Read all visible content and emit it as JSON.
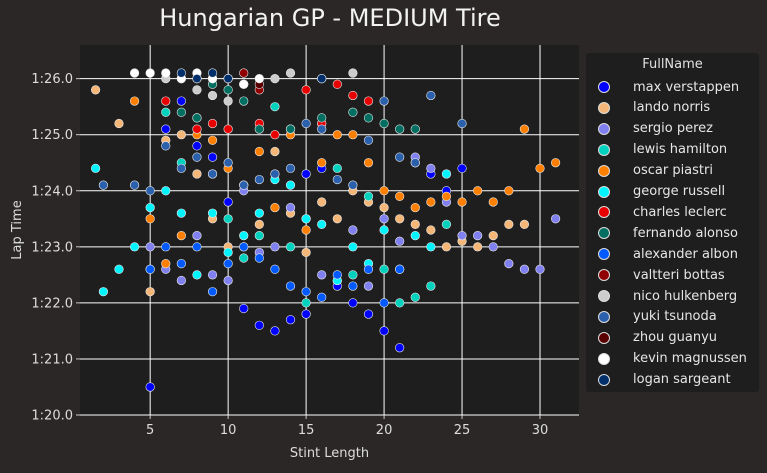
{
  "chart_data": {
    "type": "scatter",
    "title": "Hungarian GP - MEDIUM Tire",
    "xlabel": "Stint Length",
    "ylabel": "Lap Time",
    "xlim": [
      0.5,
      32.5
    ],
    "ylim": [
      80,
      86.6
    ],
    "x_ticks": [
      5,
      10,
      15,
      20,
      25,
      30
    ],
    "y_ticks": [
      {
        "value": 80,
        "label": "1:20.0"
      },
      {
        "value": 81,
        "label": "1:21.0"
      },
      {
        "value": 82,
        "label": "1:22.0"
      },
      {
        "value": 83,
        "label": "1:23.0"
      },
      {
        "value": 84,
        "label": "1:24.0"
      },
      {
        "value": 85,
        "label": "1:25.0"
      },
      {
        "value": 86,
        "label": "1:26.0"
      }
    ],
    "grid": true,
    "legend_title": "FullName",
    "legend_position": "right",
    "series": [
      {
        "name": "max verstappen",
        "color": "#0000ff",
        "points": [
          [
            5,
            80.5
          ],
          [
            6,
            85.1
          ],
          [
            7,
            85.6
          ],
          [
            8,
            84.8
          ],
          [
            9,
            84.6
          ],
          [
            10,
            83.8
          ],
          [
            11,
            81.9
          ],
          [
            12,
            81.6
          ],
          [
            13,
            81.5
          ],
          [
            14,
            81.7
          ],
          [
            15,
            81.8
          ],
          [
            15,
            84.3
          ],
          [
            16,
            84.4
          ],
          [
            17,
            82.3
          ],
          [
            18,
            82.0
          ],
          [
            19,
            81.8
          ],
          [
            20,
            81.5
          ],
          [
            21,
            81.2
          ],
          [
            22,
            84.5
          ],
          [
            23,
            84.3
          ],
          [
            24,
            84.0
          ],
          [
            25,
            84.4
          ]
        ]
      },
      {
        "name": "lando norris",
        "color": "#f4b777",
        "points": [
          [
            1.5,
            85.8
          ],
          [
            3,
            85.2
          ],
          [
            5,
            82.2
          ],
          [
            6,
            84.9
          ],
          [
            7,
            85.0
          ],
          [
            8,
            84.3
          ],
          [
            9,
            83.5
          ],
          [
            10,
            83.0
          ],
          [
            11,
            84.1
          ],
          [
            12,
            83.4
          ],
          [
            13,
            84.7
          ],
          [
            14,
            83.6
          ],
          [
            15,
            82.9
          ],
          [
            16,
            83.8
          ],
          [
            17,
            83.5
          ],
          [
            18,
            84.0
          ],
          [
            19,
            83.8
          ],
          [
            20,
            83.7
          ],
          [
            21,
            83.5
          ],
          [
            22,
            83.4
          ],
          [
            23,
            83.3
          ],
          [
            24,
            83.0
          ],
          [
            25,
            83.1
          ],
          [
            26,
            83.0
          ],
          [
            27,
            83.2
          ],
          [
            28,
            83.4
          ],
          [
            29,
            83.4
          ]
        ]
      },
      {
        "name": "sergio perez",
        "color": "#8080f0",
        "points": [
          [
            5,
            83.0
          ],
          [
            6,
            82.6
          ],
          [
            7,
            82.4
          ],
          [
            8,
            83.2
          ],
          [
            9,
            82.5
          ],
          [
            10,
            82.4
          ],
          [
            11,
            84.0
          ],
          [
            12,
            82.9
          ],
          [
            13,
            83.0
          ],
          [
            14,
            83.7
          ],
          [
            15,
            83.5
          ],
          [
            16,
            82.5
          ],
          [
            17,
            82.4
          ],
          [
            18,
            83.3
          ],
          [
            19,
            82.3
          ],
          [
            20,
            83.5
          ],
          [
            21,
            83.1
          ],
          [
            22,
            84.6
          ],
          [
            23,
            84.4
          ],
          [
            24,
            83.8
          ],
          [
            25,
            83.2
          ],
          [
            26,
            83.2
          ],
          [
            27,
            83.0
          ],
          [
            28,
            82.7
          ],
          [
            29,
            82.6
          ],
          [
            30,
            82.6
          ],
          [
            31,
            83.5
          ]
        ]
      },
      {
        "name": "lewis hamilton",
        "color": "#00d2be",
        "points": [
          [
            5,
            82.6
          ],
          [
            6,
            85.4
          ],
          [
            7,
            84.5
          ],
          [
            8,
            85.3
          ],
          [
            9,
            84.3
          ],
          [
            10,
            83.5
          ],
          [
            11,
            82.8
          ],
          [
            12,
            83.2
          ],
          [
            13,
            85.5
          ],
          [
            14,
            83.0
          ],
          [
            15,
            82.0
          ],
          [
            16,
            85.2
          ],
          [
            17,
            84.4
          ],
          [
            18,
            82.5
          ],
          [
            19,
            83.9
          ],
          [
            20,
            82.6
          ],
          [
            21,
            82.0
          ],
          [
            22,
            82.1
          ],
          [
            23,
            82.3
          ],
          [
            24,
            83.4
          ]
        ]
      },
      {
        "name": "oscar piastri",
        "color": "#ff8000",
        "points": [
          [
            4,
            85.6
          ],
          [
            5,
            83.5
          ],
          [
            6,
            82.7
          ],
          [
            7,
            83.2
          ],
          [
            8,
            85.0
          ],
          [
            9,
            84.9
          ],
          [
            10,
            84.4
          ],
          [
            11,
            83.0
          ],
          [
            12,
            84.7
          ],
          [
            13,
            83.7
          ],
          [
            14,
            85.0
          ],
          [
            15,
            83.3
          ],
          [
            16,
            84.5
          ],
          [
            17,
            85.0
          ],
          [
            18,
            85.0
          ],
          [
            19,
            84.5
          ],
          [
            20,
            84.0
          ],
          [
            21,
            83.9
          ],
          [
            22,
            83.7
          ],
          [
            23,
            83.8
          ],
          [
            24,
            83.9
          ],
          [
            25,
            83.8
          ],
          [
            26,
            84.0
          ],
          [
            27,
            83.8
          ],
          [
            28,
            84.0
          ],
          [
            29,
            85.1
          ],
          [
            30,
            84.4
          ],
          [
            31,
            84.5
          ]
        ]
      },
      {
        "name": "george russell",
        "color": "#00f5ff",
        "points": [
          [
            1.5,
            84.4
          ],
          [
            2,
            82.2
          ],
          [
            3,
            82.6
          ],
          [
            4,
            83.0
          ],
          [
            5,
            83.7
          ],
          [
            6,
            84.0
          ],
          [
            7,
            83.6
          ],
          [
            8,
            82.5
          ],
          [
            9,
            83.6
          ],
          [
            10,
            82.9
          ],
          [
            11,
            83.2
          ],
          [
            12,
            83.6
          ],
          [
            13,
            84.2
          ],
          [
            14,
            84.1
          ],
          [
            15,
            83.5
          ],
          [
            16,
            83.4
          ],
          [
            17,
            82.4
          ],
          [
            18,
            83.0
          ],
          [
            19,
            82.7
          ],
          [
            20,
            83.3
          ],
          [
            21,
            82.6
          ],
          [
            22,
            83.2
          ],
          [
            23,
            83.0
          ],
          [
            24,
            84.3
          ]
        ]
      },
      {
        "name": "charles leclerc",
        "color": "#e80000",
        "points": [
          [
            6,
            85.6
          ],
          [
            8,
            85.1
          ],
          [
            9,
            85.2
          ],
          [
            10,
            85.1
          ],
          [
            11,
            85.9
          ],
          [
            12,
            85.2
          ],
          [
            13,
            85.0
          ],
          [
            14,
            85.1
          ],
          [
            15,
            85.8
          ],
          [
            16,
            85.2
          ],
          [
            17,
            85.9
          ],
          [
            18,
            85.7
          ],
          [
            19,
            85.6
          ]
        ]
      },
      {
        "name": "fernando alonso",
        "color": "#006f62",
        "points": [
          [
            7,
            85.4
          ],
          [
            8,
            85.3
          ],
          [
            9,
            85.9
          ],
          [
            10,
            85.8
          ],
          [
            11,
            85.6
          ],
          [
            12,
            85.1
          ],
          [
            14,
            85.1
          ],
          [
            16,
            85.3
          ],
          [
            18,
            85.4
          ],
          [
            19,
            85.3
          ],
          [
            20,
            85.2
          ],
          [
            21,
            85.1
          ],
          [
            22,
            85.1
          ]
        ]
      },
      {
        "name": "alexander albon",
        "color": "#005aff",
        "points": [
          [
            5,
            82.6
          ],
          [
            6,
            83.0
          ],
          [
            7,
            82.7
          ],
          [
            8,
            83.0
          ],
          [
            9,
            82.2
          ],
          [
            10,
            82.7
          ],
          [
            11,
            83.0
          ],
          [
            12,
            82.8
          ],
          [
            13,
            82.6
          ],
          [
            14,
            82.3
          ],
          [
            15,
            82.2
          ],
          [
            16,
            82.1
          ],
          [
            17,
            82.5
          ],
          [
            18,
            82.3
          ],
          [
            19,
            82.6
          ],
          [
            20,
            82.0
          ],
          [
            21,
            82.6
          ]
        ]
      },
      {
        "name": "valtteri bottas",
        "color": "#900000",
        "points": [
          [
            7,
            86.0
          ],
          [
            9,
            86.0
          ],
          [
            11,
            86.1
          ],
          [
            12,
            85.8
          ]
        ]
      },
      {
        "name": "nico hulkenberg",
        "color": "#cccccc",
        "points": [
          [
            6,
            86.0
          ],
          [
            8,
            85.8
          ],
          [
            9,
            85.7
          ],
          [
            10,
            85.6
          ],
          [
            13,
            86.0
          ],
          [
            14,
            86.1
          ],
          [
            16,
            86.0
          ],
          [
            18,
            86.1
          ]
        ]
      },
      {
        "name": "yuki tsunoda",
        "color": "#2b60ad",
        "points": [
          [
            2,
            84.1
          ],
          [
            4,
            84.1
          ],
          [
            5,
            84.0
          ],
          [
            6,
            84.8
          ],
          [
            7,
            84.4
          ],
          [
            8,
            84.6
          ],
          [
            9,
            84.3
          ],
          [
            10,
            84.5
          ],
          [
            11,
            84.1
          ],
          [
            12,
            84.2
          ],
          [
            13,
            84.3
          ],
          [
            14,
            84.4
          ],
          [
            15,
            85.2
          ],
          [
            16,
            85.1
          ],
          [
            17,
            84.2
          ],
          [
            18,
            84.1
          ],
          [
            19,
            84.9
          ],
          [
            20,
            85.6
          ],
          [
            21,
            84.6
          ],
          [
            22,
            84.5
          ],
          [
            23,
            85.7
          ],
          [
            25,
            85.2
          ]
        ]
      },
      {
        "name": "zhou guanyu",
        "color": "#5a0000",
        "points": [
          [
            8,
            86.0
          ],
          [
            10,
            86.0
          ],
          [
            12,
            85.9
          ]
        ]
      },
      {
        "name": "kevin magnussen",
        "color": "#ffffff",
        "points": [
          [
            4,
            86.1
          ],
          [
            5,
            86.1
          ],
          [
            6,
            86.1
          ],
          [
            7,
            86.0
          ],
          [
            8,
            86.1
          ],
          [
            9,
            86.0
          ],
          [
            10,
            86.0
          ],
          [
            11,
            85.9
          ],
          [
            12,
            86.0
          ]
        ]
      },
      {
        "name": "logan sargeant",
        "color": "#002f6c",
        "points": [
          [
            7,
            86.1
          ],
          [
            8,
            86.0
          ],
          [
            9,
            86.1
          ],
          [
            10,
            86.0
          ],
          [
            16,
            86.0
          ]
        ]
      }
    ]
  }
}
